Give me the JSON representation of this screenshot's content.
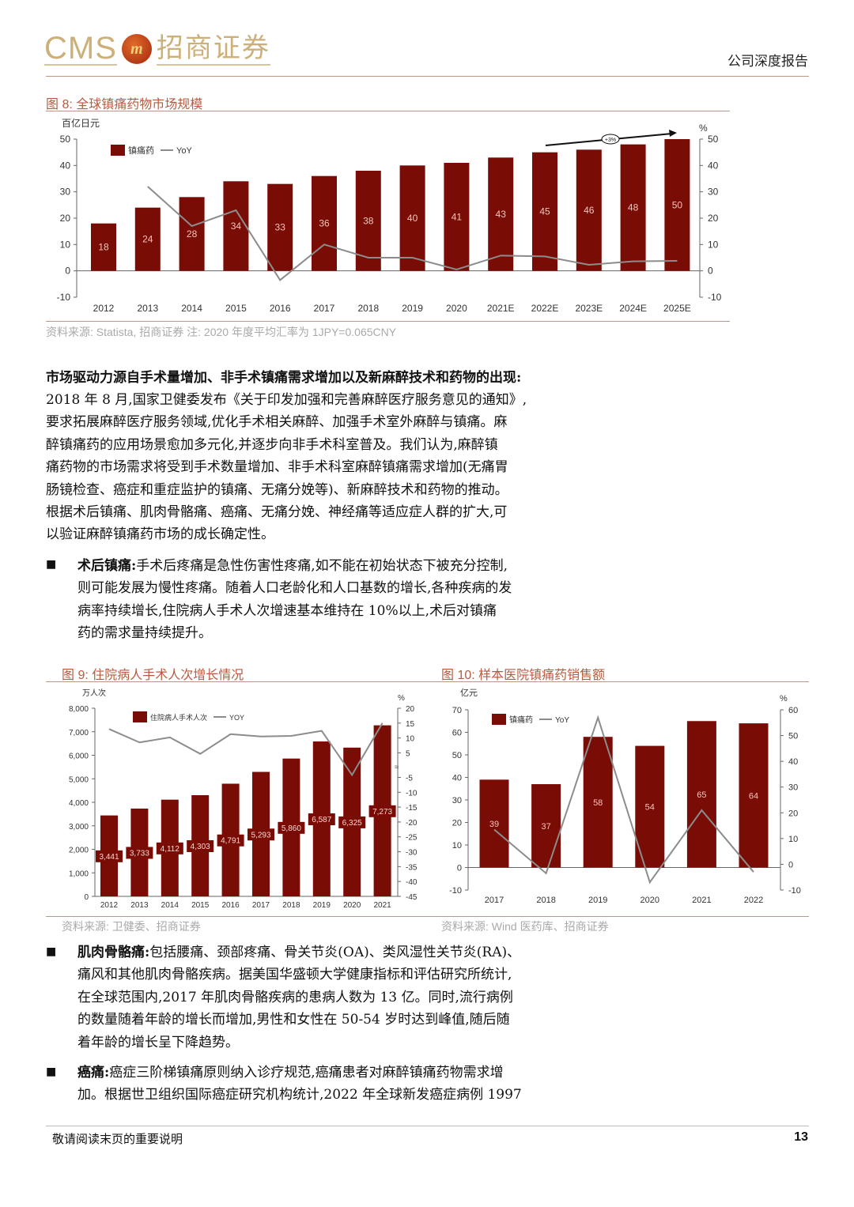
{
  "header": {
    "logo_text_en": "CMS",
    "logo_badge": "m",
    "logo_text_cn": "招商证券",
    "doc_type": "公司深度报告"
  },
  "colors": {
    "bar": "#7a0c06",
    "line": "#8c8c8c",
    "title": "#b85a3f",
    "rule": "#b9998c"
  },
  "figures": {
    "fig8": {
      "title": "图 8:  全球镇痛药物市场规模",
      "source": "资料来源:  Statista,  招商证券     注:  2020 年度平均汇率为 1JPY=0.065CNY"
    },
    "fig9": {
      "title": "图 9:  住院病人手术人次增长情况",
      "source": "资料来源:  卫健委、招商证券"
    },
    "fig10": {
      "title": "图 10:  样本医院镇痛药销售额",
      "source": "资料来源:  Wind 医药库、招商证券"
    }
  },
  "chart_data": [
    {
      "type": "bar",
      "categories": [
        "2012",
        "2013",
        "2014",
        "2015",
        "2016",
        "2017",
        "2018",
        "2019",
        "2020",
        "2021E",
        "2022E",
        "2023E",
        "2024E",
        "2025E"
      ],
      "series": [
        {
          "name": "镇痛药",
          "type": "bar",
          "axis": "left",
          "values": [
            18,
            24,
            28,
            34,
            33,
            36,
            38,
            40,
            41,
            43,
            45,
            46,
            48,
            50
          ]
        },
        {
          "name": "YoY",
          "type": "line",
          "axis": "right",
          "values": [
            null,
            32,
            17,
            23,
            -3.5,
            10,
            5,
            5,
            0.5,
            5.8,
            5.5,
            2.3,
            3.6,
            3.8
          ]
        }
      ],
      "ylabel": "百亿日元",
      "y2label": "%",
      "ylim": [
        -10,
        50
      ],
      "y2lim": [
        -10,
        50
      ],
      "yticks": [
        "50",
        "40",
        "30",
        "20",
        "10",
        "0",
        "-10"
      ],
      "y2ticks": [
        "50",
        "40",
        "30",
        "20",
        "10",
        "0",
        "-10"
      ],
      "annotation": "+3%",
      "legend": "top-left",
      "grid": false
    },
    {
      "type": "bar",
      "categories": [
        "2012",
        "2013",
        "2014",
        "2015",
        "2016",
        "2017",
        "2018",
        "2019",
        "2020",
        "2021"
      ],
      "series": [
        {
          "name": "住院病人手术人次",
          "type": "bar",
          "axis": "left",
          "values": [
            3441,
            3733,
            4112,
            4303,
            4791,
            5293,
            5860,
            6587,
            6325,
            7273
          ],
          "labels": [
            "3,441",
            "3,733",
            "4,112",
            "4,303",
            "4,791",
            "5,293",
            "5,860",
            "6,587",
            "6,325",
            "7,273"
          ]
        },
        {
          "name": "YOY",
          "type": "line",
          "axis": "right",
          "values": [
            13,
            8.5,
            10.2,
            4.6,
            11.3,
            10.5,
            10.7,
            12.4,
            -4,
            15
          ]
        }
      ],
      "ylabel": "万人次",
      "y2label": "%",
      "ylim": [
        0,
        8000
      ],
      "y2lim": [
        -45,
        20
      ],
      "yticks": [
        "8,000",
        "7,000",
        "6,000",
        "5,000",
        "4,000",
        "3,000",
        "2,000",
        "1,000",
        "0"
      ],
      "y2ticks": [
        "20",
        "15",
        "10",
        "5",
        "-5",
        "-10",
        "-15",
        "-20",
        "-25",
        "-30",
        "-35",
        "-40",
        "-45"
      ],
      "y2_axis_break": true,
      "legend": "top-left",
      "grid": false
    },
    {
      "type": "bar",
      "categories": [
        "2017",
        "2018",
        "2019",
        "2020",
        "2021",
        "2022"
      ],
      "series": [
        {
          "name": "镇痛药",
          "type": "bar",
          "axis": "left",
          "values": [
            39,
            37,
            58,
            54,
            65,
            64
          ]
        },
        {
          "name": "YoY",
          "type": "line",
          "axis": "right",
          "values": [
            13.5,
            -3.5,
            57,
            -7,
            21,
            -3
          ]
        }
      ],
      "ylabel": "亿元",
      "y2label": "%",
      "ylim": [
        -10,
        70
      ],
      "y2lim": [
        -10,
        60
      ],
      "yticks": [
        "70",
        "60",
        "50",
        "40",
        "30",
        "20",
        "10",
        "0",
        "-10"
      ],
      "y2ticks": [
        "60",
        "50",
        "40",
        "30",
        "20",
        "10",
        "0",
        "-10"
      ],
      "legend": "top-left",
      "grid": false
    }
  ],
  "body": {
    "section_heading": "市场驱动力源自手术量增加、非手术镇痛需求增加以及新麻醉技术和药物的出现:",
    "intro_lines": [
      "2018 年 8 月,国家卫健委发布《关于印发加强和完善麻醉医疗服务意见的通知》,",
      "要求拓展麻醉医疗服务领域,优化手术相关麻醉、加强手术室外麻醉与镇痛。麻",
      "醉镇痛药的应用场景愈加多元化,并逐步向非手术科室普及。我们认为,麻醉镇",
      "痛药物的市场需求将受到手术数量增加、非手术科室麻醉镇痛需求增加(无痛胃",
      "肠镜检查、癌症和重症监护的镇痛、无痛分娩等)、新麻醉技术和药物的推动。",
      "根据术后镇痛、肌肉骨骼痛、癌痛、无痛分娩、神经痛等适应症人群的扩大,可",
      "以验证麻醉镇痛药市场的成长确定性。"
    ],
    "bullets": [
      {
        "term": "术后镇痛:",
        "lines": [
          "手术后疼痛是急性伤害性疼痛,如不能在初始状态下被充分控制,",
          "则可能发展为慢性疼痛。随着人口老龄化和人口基数的增长,各种疾病的发",
          "病率持续增长,住院病人手术人次增速基本维持在 10%以上,术后对镇痛",
          "药的需求量持续提升。"
        ]
      },
      {
        "term": "肌肉骨骼痛:",
        "lines": [
          "包括腰痛、颈部疼痛、骨关节炎(OA)、类风湿性关节炎(RA)、",
          "痛风和其他肌肉骨骼疾病。据美国华盛顿大学健康指标和评估研究所统计,",
          "在全球范围内,2017 年肌肉骨骼疾病的患病人数为 13 亿。同时,流行病例",
          "的数量随着年龄的增长而增加,男性和女性在 50-54 岁时达到峰值,随后随",
          "着年龄的增长呈下降趋势。"
        ]
      },
      {
        "term": "癌痛:",
        "lines": [
          "癌症三阶梯镇痛原则纳入诊疗规范,癌痛患者对麻醉镇痛药物需求增",
          "加。根据世卫组织国际癌症研究机构统计,2022 年全球新发癌症病例 1997"
        ]
      }
    ]
  },
  "footer": {
    "disclaimer": "敬请阅读末页的重要说明",
    "page_number": "13"
  }
}
